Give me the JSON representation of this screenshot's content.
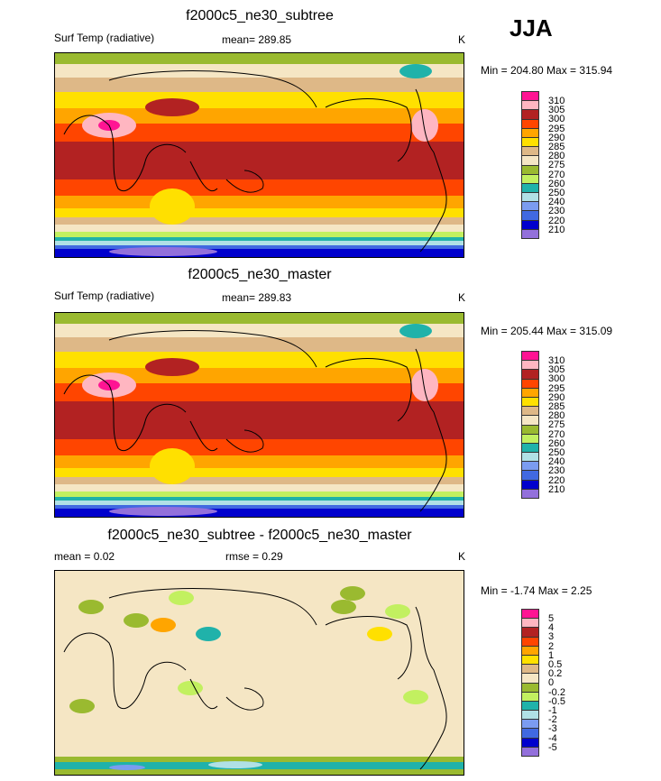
{
  "season": "JJA",
  "panels": [
    {
      "title": "f2000c5_ne30_subtree",
      "variable": "Surf Temp (radiative)",
      "stat": "mean= 289.85",
      "units": "K",
      "minmax": "Min = 204.80 Max = 315.94",
      "levels": [
        "310",
        "305",
        "300",
        "295",
        "290",
        "285",
        "280",
        "275",
        "270",
        "260",
        "250",
        "240",
        "230",
        "220",
        "210"
      ]
    },
    {
      "title": "f2000c5_ne30_master",
      "variable": "Surf Temp (radiative)",
      "stat": "mean= 289.83",
      "units": "K",
      "minmax": "Min = 205.44 Max = 315.09",
      "levels": [
        "310",
        "305",
        "300",
        "295",
        "290",
        "285",
        "280",
        "275",
        "270",
        "260",
        "250",
        "240",
        "230",
        "220",
        "210"
      ]
    },
    {
      "title": "f2000c5_ne30_subtree - f2000c5_ne30_master",
      "stat": "mean =   0.02",
      "rmse": "rmse =   0.29",
      "units": "K",
      "minmax": "Min =  -1.74 Max =   2.25",
      "levels": [
        "5",
        "4",
        "3",
        "2",
        "1",
        "0.5",
        "0.2",
        "0",
        "-0.2",
        "-0.5",
        "-1",
        "-2",
        "-3",
        "-4",
        "-5"
      ]
    }
  ],
  "colorbar_colors": [
    "#ff1493",
    "#ffb6c1",
    "#b22222",
    "#ff4500",
    "#ffa500",
    "#ffe000",
    "#deb887",
    "#f5e6c4",
    "#9aba30",
    "#c2f060",
    "#20b2aa",
    "#b0e0e6",
    "#7b9cf0",
    "#4169e1",
    "#0000cd",
    "#9370db"
  ]
}
